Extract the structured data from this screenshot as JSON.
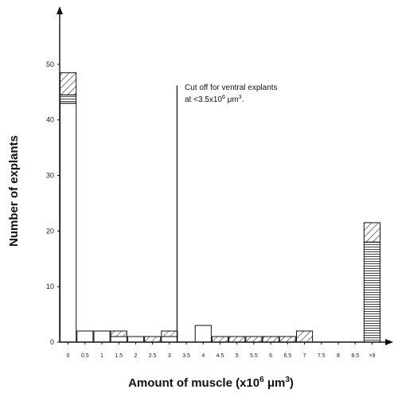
{
  "chart_data": {
    "type": "bar",
    "categories": [
      "0",
      "0.5",
      "1",
      "1.5",
      "2",
      "2.5",
      "3",
      "3.5",
      "4",
      "4.5",
      "5",
      "5.5",
      "6",
      "6.5",
      "7",
      "7.5",
      "8",
      "8.5",
      ">9"
    ],
    "series": [
      {
        "pattern": "open",
        "values": [
          43,
          2,
          2,
          1,
          1,
          0,
          1,
          0,
          3,
          0,
          0,
          0,
          0,
          0,
          0,
          0,
          0,
          0,
          0
        ]
      },
      {
        "pattern": "horizontal-lines",
        "values": [
          1.5,
          0,
          0,
          0,
          0,
          0,
          0,
          0,
          0,
          0,
          0,
          0,
          0,
          0,
          0,
          0,
          0,
          0,
          18
        ]
      },
      {
        "pattern": "diagonal-hatch",
        "values": [
          4,
          0,
          0,
          1,
          0,
          1,
          1,
          0,
          0,
          1,
          1,
          1,
          1,
          1,
          2,
          0,
          0,
          0,
          3.5
        ]
      }
    ],
    "yticks": [
      "0",
      "10",
      "20",
      "30",
      "40",
      "50"
    ],
    "ylim": [
      0,
      55
    ],
    "xlabel_parts": {
      "main": "Amount of muscle (x10",
      "sup1": "6",
      "mid": " μm",
      "sup2": "3",
      "end": ")"
    },
    "ylabel": "Number of explants",
    "cutoff_value": 3.5,
    "annotation_line1": "Cut off for ventral explants",
    "annotation_line2": "at <3.5x10",
    "annotation_sup": "6",
    "annotation_unit": " μm",
    "annotation_sup2": "3",
    "annotation_end": ".",
    "grid": false
  }
}
